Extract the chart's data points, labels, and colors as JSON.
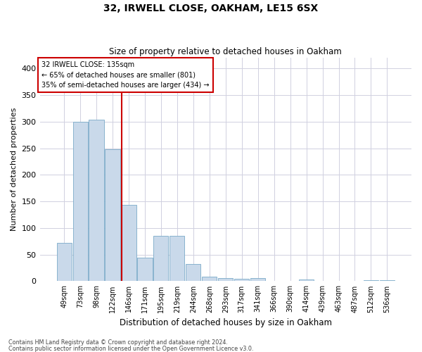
{
  "title1": "32, IRWELL CLOSE, OAKHAM, LE15 6SX",
  "title2": "Size of property relative to detached houses in Oakham",
  "xlabel": "Distribution of detached houses by size in Oakham",
  "ylabel": "Number of detached properties",
  "footer1": "Contains HM Land Registry data © Crown copyright and database right 2024.",
  "footer2": "Contains public sector information licensed under the Open Government Licence v3.0.",
  "bar_labels": [
    "49sqm",
    "73sqm",
    "98sqm",
    "122sqm",
    "146sqm",
    "171sqm",
    "195sqm",
    "219sqm",
    "244sqm",
    "268sqm",
    "293sqm",
    "317sqm",
    "341sqm",
    "366sqm",
    "390sqm",
    "414sqm",
    "439sqm",
    "463sqm",
    "487sqm",
    "512sqm",
    "536sqm"
  ],
  "bar_values": [
    72,
    299,
    304,
    248,
    143,
    44,
    85,
    85,
    32,
    9,
    6,
    5,
    6,
    1,
    0,
    3,
    0,
    0,
    0,
    2,
    2
  ],
  "bar_color": "#c9d9ea",
  "bar_edge_color": "#7aaac8",
  "grid_color": "#d0d0e0",
  "vline_x": 3.55,
  "vline_color": "#cc0000",
  "annotation_text": "32 IRWELL CLOSE: 135sqm\n← 65% of detached houses are smaller (801)\n35% of semi-detached houses are larger (434) →",
  "annotation_box_color": "white",
  "annotation_box_edge": "#cc0000",
  "ylim": [
    0,
    420
  ],
  "yticks": [
    0,
    50,
    100,
    150,
    200,
    250,
    300,
    350,
    400
  ],
  "background_color": "white",
  "title1_fontsize": 10,
  "title2_fontsize": 8.5,
  "ylabel_fontsize": 8,
  "xlabel_fontsize": 8.5,
  "tick_fontsize": 7,
  "annot_fontsize": 7
}
